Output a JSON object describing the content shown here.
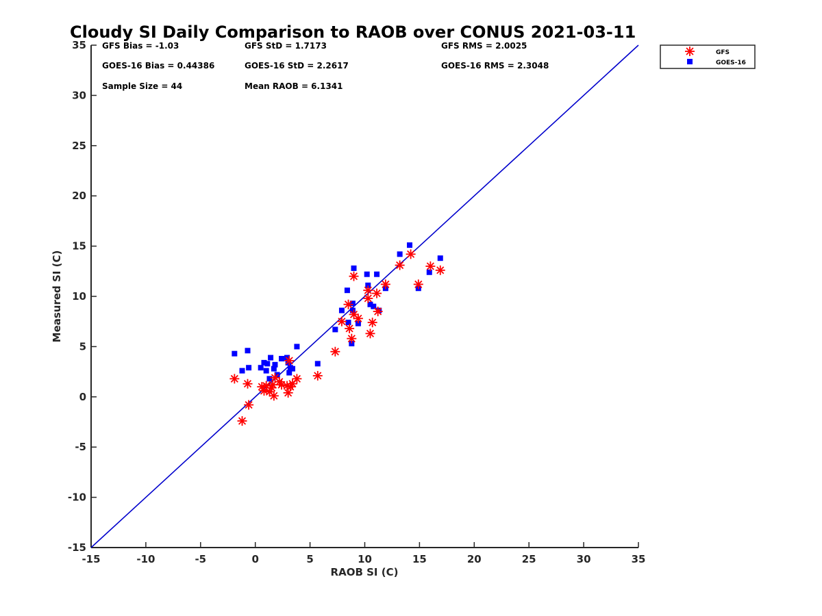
{
  "chart_data": {
    "type": "scatter",
    "title": "Cloudy SI Daily Comparison to RAOB over CONUS 2021-03-11",
    "xlabel": "RAOB SI (C)",
    "ylabel": "Measured SI (C)",
    "xlim": [
      -15,
      35
    ],
    "ylim": [
      -15,
      35
    ],
    "xticks": [
      -15,
      -10,
      -5,
      0,
      5,
      10,
      15,
      20,
      25,
      30,
      35
    ],
    "yticks": [
      -15,
      -10,
      -5,
      0,
      5,
      10,
      15,
      20,
      25,
      30,
      35
    ],
    "grid": false,
    "legend_position": "top-right outside",
    "reference_line": {
      "x": [
        -15,
        35
      ],
      "y": [
        -15,
        35
      ],
      "color": "#0000cc"
    },
    "stats": {
      "gfs_bias": "GFS Bias = -1.03",
      "gfs_std": "GFS StD = 1.7173",
      "gfs_rms": "GFS RMS = 2.0025",
      "goes_bias": "GOES-16 Bias = 0.44386",
      "goes_std": "GOES-16 StD = 2.2617",
      "goes_rms": "GOES-16 RMS = 2.3048",
      "sample_size": "Sample Size = 44",
      "mean_raob": "Mean RAOB = 6.1341"
    },
    "series": [
      {
        "name": "GFS",
        "marker": "asterisk",
        "color": "#ff0000",
        "points": [
          [
            -1.9,
            1.8
          ],
          [
            -0.7,
            1.3
          ],
          [
            -1.2,
            -2.4
          ],
          [
            -0.6,
            -0.8
          ],
          [
            0.6,
            1.0
          ],
          [
            0.8,
            0.6
          ],
          [
            1.0,
            1.1
          ],
          [
            1.3,
            0.5
          ],
          [
            1.5,
            0.9
          ],
          [
            1.6,
            1.2
          ],
          [
            1.7,
            0.1
          ],
          [
            1.8,
            1.9
          ],
          [
            2.2,
            1.5
          ],
          [
            2.4,
            1.2
          ],
          [
            2.9,
            1.1
          ],
          [
            3.0,
            0.4
          ],
          [
            3.1,
            3.6
          ],
          [
            3.2,
            1.0
          ],
          [
            3.4,
            1.3
          ],
          [
            3.8,
            1.8
          ],
          [
            5.7,
            2.1
          ],
          [
            7.3,
            4.5
          ],
          [
            7.9,
            7.5
          ],
          [
            8.5,
            9.2
          ],
          [
            8.6,
            6.8
          ],
          [
            8.8,
            5.8
          ],
          [
            9.0,
            12.0
          ],
          [
            9.0,
            8.2
          ],
          [
            9.4,
            7.8
          ],
          [
            10.3,
            9.8
          ],
          [
            10.3,
            10.6
          ],
          [
            10.5,
            6.3
          ],
          [
            10.7,
            7.4
          ],
          [
            11.1,
            10.3
          ],
          [
            11.2,
            8.5
          ],
          [
            11.9,
            11.2
          ],
          [
            13.2,
            13.1
          ],
          [
            14.2,
            14.2
          ],
          [
            14.9,
            11.2
          ],
          [
            16.0,
            13.0
          ],
          [
            16.9,
            12.6
          ]
        ]
      },
      {
        "name": "GOES-16",
        "marker": "square",
        "color": "#0000ff",
        "points": [
          [
            -1.9,
            4.3
          ],
          [
            -1.2,
            2.6
          ],
          [
            -0.7,
            4.6
          ],
          [
            -0.6,
            2.9
          ],
          [
            0.5,
            2.9
          ],
          [
            0.8,
            3.4
          ],
          [
            1.0,
            2.6
          ],
          [
            1.1,
            3.3
          ],
          [
            1.3,
            1.8
          ],
          [
            1.4,
            3.9
          ],
          [
            1.7,
            2.8
          ],
          [
            1.8,
            3.2
          ],
          [
            2.0,
            2.2
          ],
          [
            2.4,
            3.8
          ],
          [
            2.9,
            3.9
          ],
          [
            3.0,
            3.4
          ],
          [
            3.1,
            2.4
          ],
          [
            3.2,
            2.9
          ],
          [
            3.4,
            2.8
          ],
          [
            3.8,
            5.0
          ],
          [
            5.7,
            3.3
          ],
          [
            7.3,
            6.7
          ],
          [
            7.9,
            8.6
          ],
          [
            8.4,
            10.6
          ],
          [
            8.5,
            7.4
          ],
          [
            8.8,
            5.3
          ],
          [
            8.9,
            8.6
          ],
          [
            8.9,
            9.3
          ],
          [
            9.0,
            12.8
          ],
          [
            9.4,
            7.3
          ],
          [
            10.2,
            12.2
          ],
          [
            10.3,
            11.1
          ],
          [
            10.5,
            9.2
          ],
          [
            10.8,
            9.0
          ],
          [
            11.1,
            12.2
          ],
          [
            11.3,
            8.6
          ],
          [
            11.9,
            10.8
          ],
          [
            13.2,
            14.2
          ],
          [
            14.1,
            15.1
          ],
          [
            14.9,
            10.8
          ],
          [
            15.9,
            12.4
          ],
          [
            16.9,
            13.8
          ]
        ]
      }
    ]
  }
}
